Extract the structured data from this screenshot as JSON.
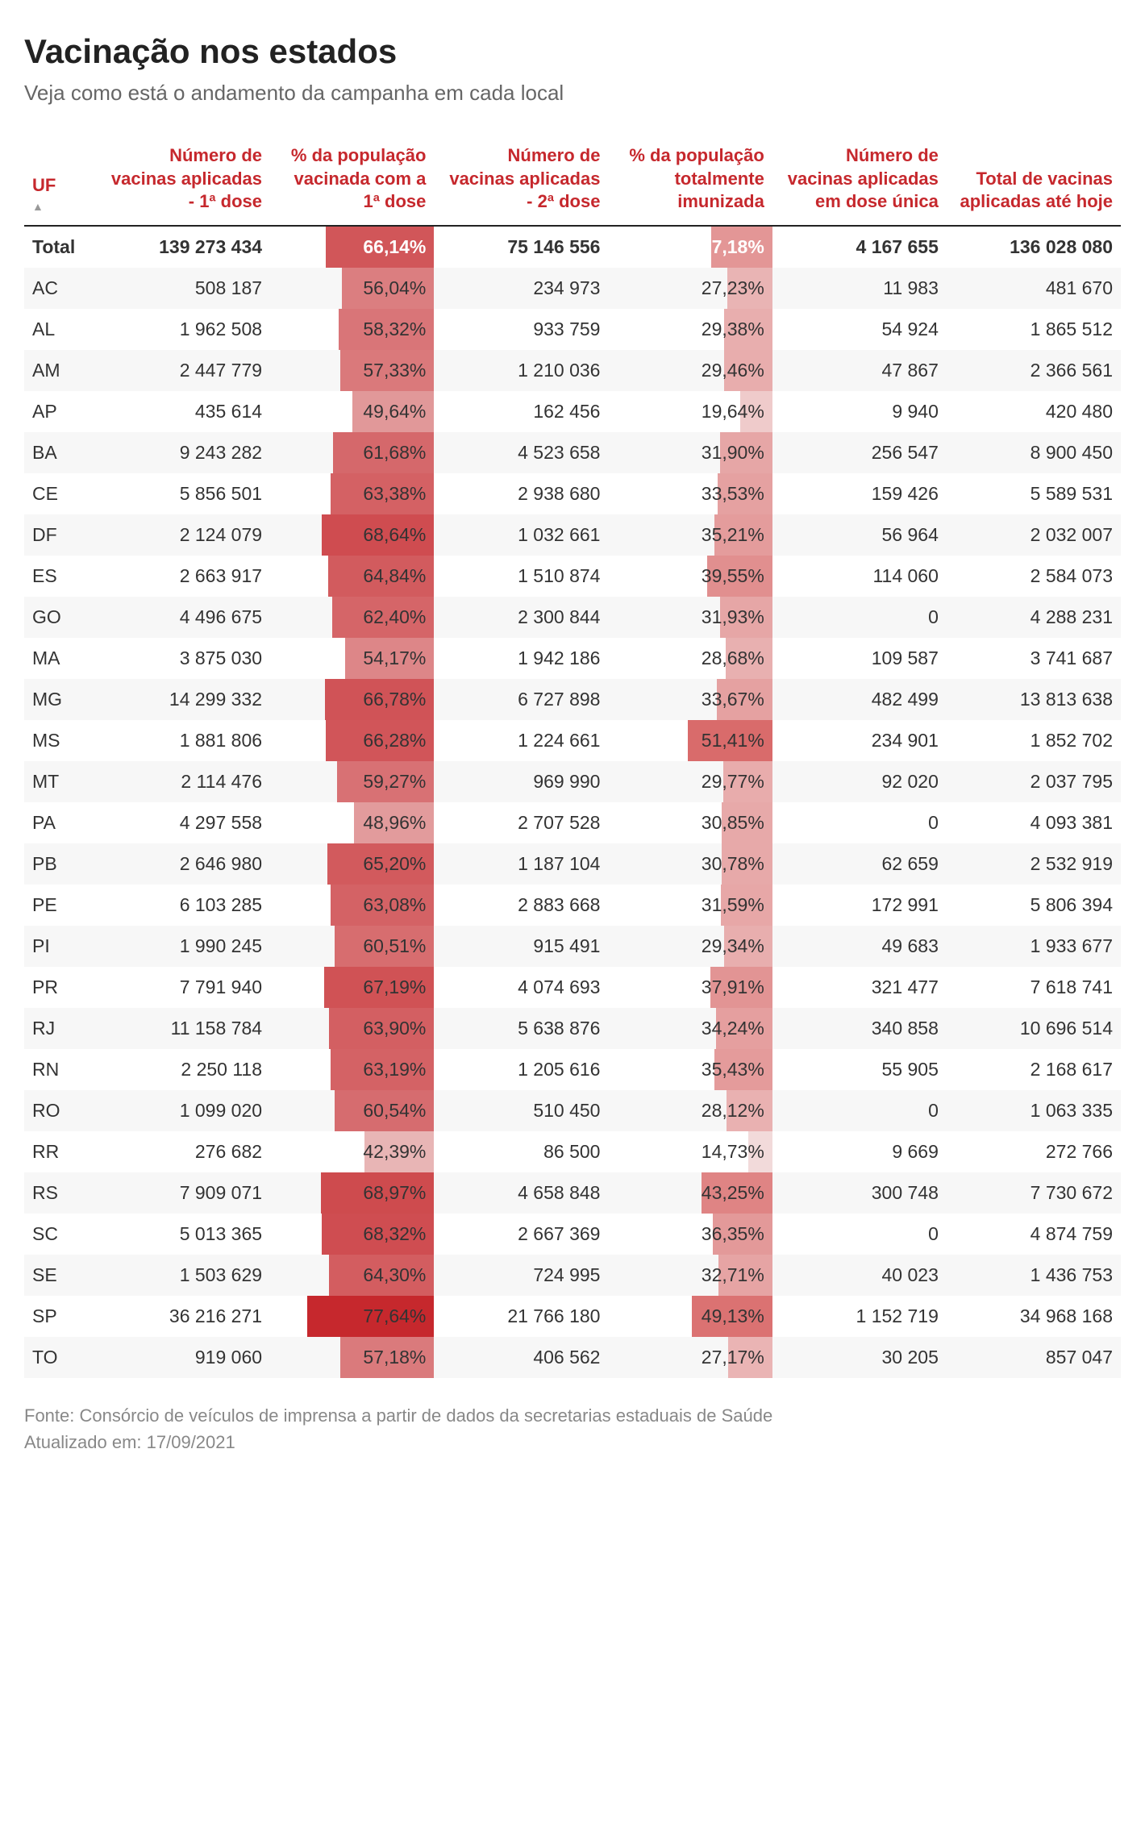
{
  "title": "Vacinação nos estados",
  "subtitle": "Veja como está o andamento da campanha em cada local",
  "footer_source": "Fonte: Consórcio de veículos de imprensa a partir de dados da secretarias estaduais de Saúde",
  "footer_updated": "Atualizado em: 17/09/2021",
  "colors": {
    "header_text": "#c6282d",
    "bar1_max": "#c6282d",
    "bar1_min": "#e8b5b5",
    "bar2_max": "#d96b6b",
    "bar2_min": "#f2dada",
    "row_alt": "#f7f7f7",
    "text": "#333333",
    "subtext": "#888888"
  },
  "columns": [
    {
      "key": "uf",
      "label": "UF",
      "sortable": true
    },
    {
      "key": "dose1_n",
      "label": "Número de vacinas aplicadas - 1ª dose"
    },
    {
      "key": "dose1_pct",
      "label": "% da população vacinada com a 1ª dose",
      "bar": 1
    },
    {
      "key": "dose2_n",
      "label": "Número de vacinas aplicadas - 2ª dose"
    },
    {
      "key": "dose2_pct",
      "label": "% da população totalmente imunizada",
      "bar": 2
    },
    {
      "key": "unica_n",
      "label": "Número de vacinas aplicadas em dose única"
    },
    {
      "key": "total_n",
      "label": "Total de vacinas aplicadas até hoje"
    }
  ],
  "bar_scales": {
    "dose1_pct": {
      "min": 42.39,
      "max": 77.64
    },
    "dose2_pct": {
      "min": 14.73,
      "max": 51.41
    }
  },
  "total_row": {
    "uf": "Total",
    "dose1_n": "139 273 434",
    "dose1_pct": "66,14%",
    "dose1_val": 66.14,
    "dose2_n": "75 146 556",
    "dose2_pct": "37,18%",
    "dose2_val": 37.18,
    "unica_n": "4 167 655",
    "total_n": "136 028 080"
  },
  "rows": [
    {
      "uf": "AC",
      "dose1_n": "508 187",
      "dose1_pct": "56,04%",
      "dose1_val": 56.04,
      "dose2_n": "234 973",
      "dose2_pct": "27,23%",
      "dose2_val": 27.23,
      "unica_n": "11 983",
      "total_n": "481 670"
    },
    {
      "uf": "AL",
      "dose1_n": "1 962 508",
      "dose1_pct": "58,32%",
      "dose1_val": 58.32,
      "dose2_n": "933 759",
      "dose2_pct": "29,38%",
      "dose2_val": 29.38,
      "unica_n": "54 924",
      "total_n": "1 865 512"
    },
    {
      "uf": "AM",
      "dose1_n": "2 447 779",
      "dose1_pct": "57,33%",
      "dose1_val": 57.33,
      "dose2_n": "1 210 036",
      "dose2_pct": "29,46%",
      "dose2_val": 29.46,
      "unica_n": "47 867",
      "total_n": "2 366 561"
    },
    {
      "uf": "AP",
      "dose1_n": "435 614",
      "dose1_pct": "49,64%",
      "dose1_val": 49.64,
      "dose2_n": "162 456",
      "dose2_pct": "19,64%",
      "dose2_val": 19.64,
      "unica_n": "9 940",
      "total_n": "420 480"
    },
    {
      "uf": "BA",
      "dose1_n": "9 243 282",
      "dose1_pct": "61,68%",
      "dose1_val": 61.68,
      "dose2_n": "4 523 658",
      "dose2_pct": "31,90%",
      "dose2_val": 31.9,
      "unica_n": "256 547",
      "total_n": "8 900 450"
    },
    {
      "uf": "CE",
      "dose1_n": "5 856 501",
      "dose1_pct": "63,38%",
      "dose1_val": 63.38,
      "dose2_n": "2 938 680",
      "dose2_pct": "33,53%",
      "dose2_val": 33.53,
      "unica_n": "159 426",
      "total_n": "5 589 531"
    },
    {
      "uf": "DF",
      "dose1_n": "2 124 079",
      "dose1_pct": "68,64%",
      "dose1_val": 68.64,
      "dose2_n": "1 032 661",
      "dose2_pct": "35,21%",
      "dose2_val": 35.21,
      "unica_n": "56 964",
      "total_n": "2 032 007"
    },
    {
      "uf": "ES",
      "dose1_n": "2 663 917",
      "dose1_pct": "64,84%",
      "dose1_val": 64.84,
      "dose2_n": "1 510 874",
      "dose2_pct": "39,55%",
      "dose2_val": 39.55,
      "unica_n": "114 060",
      "total_n": "2 584 073"
    },
    {
      "uf": "GO",
      "dose1_n": "4 496 675",
      "dose1_pct": "62,40%",
      "dose1_val": 62.4,
      "dose2_n": "2 300 844",
      "dose2_pct": "31,93%",
      "dose2_val": 31.93,
      "unica_n": "0",
      "total_n": "4 288 231"
    },
    {
      "uf": "MA",
      "dose1_n": "3 875 030",
      "dose1_pct": "54,17%",
      "dose1_val": 54.17,
      "dose2_n": "1 942 186",
      "dose2_pct": "28,68%",
      "dose2_val": 28.68,
      "unica_n": "109 587",
      "total_n": "3 741 687"
    },
    {
      "uf": "MG",
      "dose1_n": "14 299 332",
      "dose1_pct": "66,78%",
      "dose1_val": 66.78,
      "dose2_n": "6 727 898",
      "dose2_pct": "33,67%",
      "dose2_val": 33.67,
      "unica_n": "482 499",
      "total_n": "13 813 638"
    },
    {
      "uf": "MS",
      "dose1_n": "1 881 806",
      "dose1_pct": "66,28%",
      "dose1_val": 66.28,
      "dose2_n": "1 224 661",
      "dose2_pct": "51,41%",
      "dose2_val": 51.41,
      "unica_n": "234 901",
      "total_n": "1 852 702"
    },
    {
      "uf": "MT",
      "dose1_n": "2 114 476",
      "dose1_pct": "59,27%",
      "dose1_val": 59.27,
      "dose2_n": "969 990",
      "dose2_pct": "29,77%",
      "dose2_val": 29.77,
      "unica_n": "92 020",
      "total_n": "2 037 795"
    },
    {
      "uf": "PA",
      "dose1_n": "4 297 558",
      "dose1_pct": "48,96%",
      "dose1_val": 48.96,
      "dose2_n": "2 707 528",
      "dose2_pct": "30,85%",
      "dose2_val": 30.85,
      "unica_n": "0",
      "total_n": "4 093 381"
    },
    {
      "uf": "PB",
      "dose1_n": "2 646 980",
      "dose1_pct": "65,20%",
      "dose1_val": 65.2,
      "dose2_n": "1 187 104",
      "dose2_pct": "30,78%",
      "dose2_val": 30.78,
      "unica_n": "62 659",
      "total_n": "2 532 919"
    },
    {
      "uf": "PE",
      "dose1_n": "6 103 285",
      "dose1_pct": "63,08%",
      "dose1_val": 63.08,
      "dose2_n": "2 883 668",
      "dose2_pct": "31,59%",
      "dose2_val": 31.59,
      "unica_n": "172 991",
      "total_n": "5 806 394"
    },
    {
      "uf": "PI",
      "dose1_n": "1 990 245",
      "dose1_pct": "60,51%",
      "dose1_val": 60.51,
      "dose2_n": "915 491",
      "dose2_pct": "29,34%",
      "dose2_val": 29.34,
      "unica_n": "49 683",
      "total_n": "1 933 677"
    },
    {
      "uf": "PR",
      "dose1_n": "7 791 940",
      "dose1_pct": "67,19%",
      "dose1_val": 67.19,
      "dose2_n": "4 074 693",
      "dose2_pct": "37,91%",
      "dose2_val": 37.91,
      "unica_n": "321 477",
      "total_n": "7 618 741"
    },
    {
      "uf": "RJ",
      "dose1_n": "11 158 784",
      "dose1_pct": "63,90%",
      "dose1_val": 63.9,
      "dose2_n": "5 638 876",
      "dose2_pct": "34,24%",
      "dose2_val": 34.24,
      "unica_n": "340 858",
      "total_n": "10 696 514"
    },
    {
      "uf": "RN",
      "dose1_n": "2 250 118",
      "dose1_pct": "63,19%",
      "dose1_val": 63.19,
      "dose2_n": "1 205 616",
      "dose2_pct": "35,43%",
      "dose2_val": 35.43,
      "unica_n": "55 905",
      "total_n": "2 168 617"
    },
    {
      "uf": "RO",
      "dose1_n": "1 099 020",
      "dose1_pct": "60,54%",
      "dose1_val": 60.54,
      "dose2_n": "510 450",
      "dose2_pct": "28,12%",
      "dose2_val": 28.12,
      "unica_n": "0",
      "total_n": "1 063 335"
    },
    {
      "uf": "RR",
      "dose1_n": "276 682",
      "dose1_pct": "42,39%",
      "dose1_val": 42.39,
      "dose2_n": "86 500",
      "dose2_pct": "14,73%",
      "dose2_val": 14.73,
      "unica_n": "9 669",
      "total_n": "272 766"
    },
    {
      "uf": "RS",
      "dose1_n": "7 909 071",
      "dose1_pct": "68,97%",
      "dose1_val": 68.97,
      "dose2_n": "4 658 848",
      "dose2_pct": "43,25%",
      "dose2_val": 43.25,
      "unica_n": "300 748",
      "total_n": "7 730 672"
    },
    {
      "uf": "SC",
      "dose1_n": "5 013 365",
      "dose1_pct": "68,32%",
      "dose1_val": 68.32,
      "dose2_n": "2 667 369",
      "dose2_pct": "36,35%",
      "dose2_val": 36.35,
      "unica_n": "0",
      "total_n": "4 874 759"
    },
    {
      "uf": "SE",
      "dose1_n": "1 503 629",
      "dose1_pct": "64,30%",
      "dose1_val": 64.3,
      "dose2_n": "724 995",
      "dose2_pct": "32,71%",
      "dose2_val": 32.71,
      "unica_n": "40 023",
      "total_n": "1 436 753"
    },
    {
      "uf": "SP",
      "dose1_n": "36 216 271",
      "dose1_pct": "77,64%",
      "dose1_val": 77.64,
      "dose2_n": "21 766 180",
      "dose2_pct": "49,13%",
      "dose2_val": 49.13,
      "unica_n": "1 152 719",
      "total_n": "34 968 168"
    },
    {
      "uf": "TO",
      "dose1_n": "919 060",
      "dose1_pct": "57,18%",
      "dose1_val": 57.18,
      "dose2_n": "406 562",
      "dose2_pct": "27,17%",
      "dose2_val": 27.17,
      "unica_n": "30 205",
      "total_n": "857 047"
    }
  ]
}
